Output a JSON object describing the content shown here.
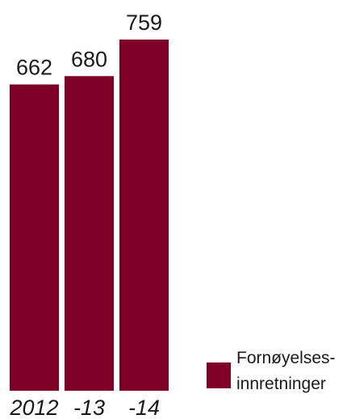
{
  "chart_data": {
    "type": "bar",
    "categories": [
      "2012",
      "-13",
      "-14"
    ],
    "series": [
      {
        "name": "Fornøyelses- innretninger",
        "legend_lines": [
          "Fornøyelses-",
          "innretninger"
        ],
        "values": [
          662,
          680,
          759
        ],
        "color": "#7e0027"
      }
    ],
    "value_labels": [
      "662",
      "680",
      "759"
    ],
    "ylim": [
      0,
      759
    ],
    "grid": false,
    "legend_position": "bottom-right",
    "axes_visible": false
  }
}
